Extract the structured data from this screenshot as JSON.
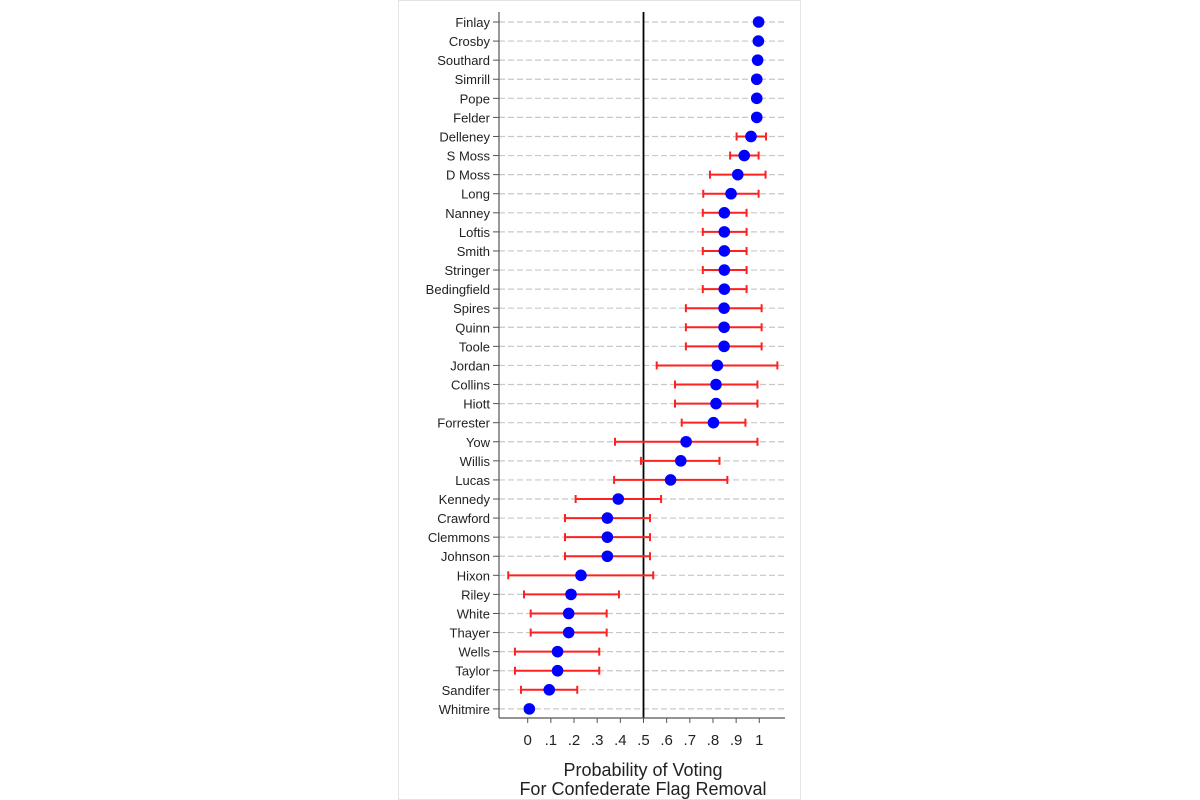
{
  "chart_data": {
    "type": "scatter",
    "subtype": "dot-plot-with-error-bars",
    "title": "",
    "xlabel": [
      "Probability of Voting",
      "For Confederate Flag Removal"
    ],
    "ylabel": "",
    "xlim": [
      -0.12,
      1.12
    ],
    "xticks": [
      0,
      0.1,
      0.2,
      0.3,
      0.4,
      0.5,
      0.6,
      0.7,
      0.8,
      0.9,
      1
    ],
    "xtick_labels": [
      "0",
      ".1",
      ".2",
      ".3",
      ".4",
      ".5",
      ".6",
      ".7",
      ".8",
      ".9",
      "1"
    ],
    "reference_line": 0.5,
    "grid": "horizontal dashed",
    "colors": {
      "point": "#0000ff",
      "error_bar": "#ff2020",
      "reference": "#000000",
      "grid": "#c8c8c8"
    },
    "legislators": [
      {
        "name": "Finlay",
        "p": 0.997,
        "lo": null,
        "hi": null
      },
      {
        "name": "Crosby",
        "p": 0.996,
        "lo": null,
        "hi": null
      },
      {
        "name": "Southard",
        "p": 0.993,
        "lo": null,
        "hi": null
      },
      {
        "name": "Simrill",
        "p": 0.989,
        "lo": null,
        "hi": null
      },
      {
        "name": "Pope",
        "p": 0.989,
        "lo": null,
        "hi": null
      },
      {
        "name": "Felder",
        "p": 0.989,
        "lo": null,
        "hi": null
      },
      {
        "name": "Delleney",
        "p": 0.964,
        "lo": 0.902,
        "hi": 1.029
      },
      {
        "name": "S Moss",
        "p": 0.935,
        "lo": 0.874,
        "hi": 0.997
      },
      {
        "name": "D Moss",
        "p": 0.907,
        "lo": 0.787,
        "hi": 1.027
      },
      {
        "name": "Long",
        "p": 0.878,
        "lo": 0.758,
        "hi": 0.997
      },
      {
        "name": "Nanney",
        "p": 0.849,
        "lo": 0.756,
        "hi": 0.945
      },
      {
        "name": "Loftis",
        "p": 0.849,
        "lo": 0.756,
        "hi": 0.945
      },
      {
        "name": "Smith",
        "p": 0.849,
        "lo": 0.756,
        "hi": 0.945
      },
      {
        "name": "Stringer",
        "p": 0.849,
        "lo": 0.756,
        "hi": 0.945
      },
      {
        "name": "Bedingfield",
        "p": 0.849,
        "lo": 0.756,
        "hi": 0.945
      },
      {
        "name": "Spires",
        "p": 0.848,
        "lo": 0.683,
        "hi": 1.01
      },
      {
        "name": "Quinn",
        "p": 0.848,
        "lo": 0.683,
        "hi": 1.01
      },
      {
        "name": "Toole",
        "p": 0.848,
        "lo": 0.683,
        "hi": 1.01
      },
      {
        "name": "Jordan",
        "p": 0.819,
        "lo": 0.557,
        "hi": 1.078
      },
      {
        "name": "Collins",
        "p": 0.813,
        "lo": 0.636,
        "hi": 0.992
      },
      {
        "name": "Hiott",
        "p": 0.813,
        "lo": 0.636,
        "hi": 0.992
      },
      {
        "name": "Forrester",
        "p": 0.802,
        "lo": 0.665,
        "hi": 0.94
      },
      {
        "name": "Yow",
        "p": 0.684,
        "lo": 0.377,
        "hi": 0.992
      },
      {
        "name": "Willis",
        "p": 0.661,
        "lo": 0.489,
        "hi": 0.828
      },
      {
        "name": "Lucas",
        "p": 0.617,
        "lo": 0.373,
        "hi": 0.862
      },
      {
        "name": "Kennedy",
        "p": 0.391,
        "lo": 0.207,
        "hi": 0.576
      },
      {
        "name": "Crawford",
        "p": 0.344,
        "lo": 0.161,
        "hi": 0.528
      },
      {
        "name": "Clemmons",
        "p": 0.344,
        "lo": 0.161,
        "hi": 0.528
      },
      {
        "name": "Johnson",
        "p": 0.344,
        "lo": 0.161,
        "hi": 0.528
      },
      {
        "name": "Hixon",
        "p": 0.23,
        "lo": -0.084,
        "hi": 0.542
      },
      {
        "name": "Riley",
        "p": 0.187,
        "lo": -0.016,
        "hi": 0.394
      },
      {
        "name": "White",
        "p": 0.177,
        "lo": 0.013,
        "hi": 0.341
      },
      {
        "name": "Thayer",
        "p": 0.177,
        "lo": 0.013,
        "hi": 0.341
      },
      {
        "name": "Wells",
        "p": 0.129,
        "lo": -0.055,
        "hi": 0.309
      },
      {
        "name": "Taylor",
        "p": 0.129,
        "lo": -0.055,
        "hi": 0.309
      },
      {
        "name": "Sandifer",
        "p": 0.093,
        "lo": -0.029,
        "hi": 0.214
      },
      {
        "name": "Whitmire",
        "p": 0.007,
        "lo": null,
        "hi": null
      }
    ]
  }
}
